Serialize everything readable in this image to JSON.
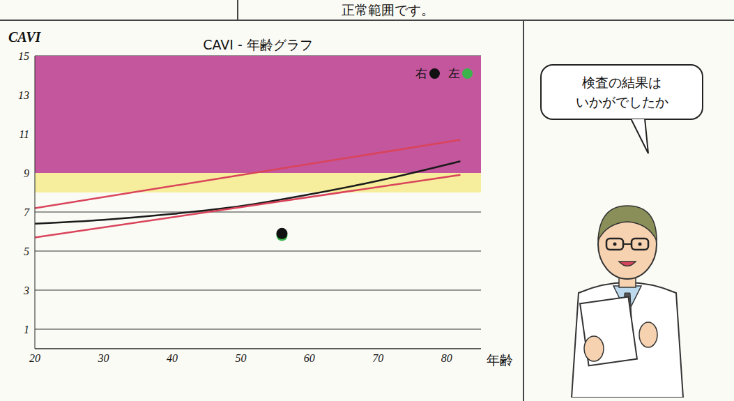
{
  "header": "正常範囲です。",
  "speech_bubble": [
    "検査の結果は",
    "いかがでしたか"
  ],
  "chart_data": {
    "type": "scatter",
    "title": "CAVI - 年齢グラフ",
    "y_label": "CAVI",
    "x_label": "年齢",
    "xlim": [
      20,
      85
    ],
    "xticks": [
      20,
      30,
      40,
      50,
      60,
      70,
      80
    ],
    "ylim": [
      0,
      15
    ],
    "yticks": [
      1,
      3,
      5,
      7,
      9,
      11,
      13,
      15
    ],
    "grid": true,
    "legend": "top-right",
    "bands": [
      {
        "from": 9,
        "to": 15,
        "color": "#c4569e"
      },
      {
        "from": 8,
        "to": 9,
        "color": "#f6ee9c"
      }
    ],
    "reference_lines": [
      {
        "type": "line",
        "color": "#1a1a1a",
        "x": [
          20,
          30,
          40,
          50,
          60,
          70,
          82
        ],
        "values": [
          6.4,
          6.6,
          6.9,
          7.3,
          7.9,
          8.6,
          9.6
        ]
      },
      {
        "type": "line",
        "color": "#d9445a",
        "x": [
          20,
          82
        ],
        "values": [
          7.2,
          10.7
        ]
      },
      {
        "type": "line",
        "color": "#d9445a",
        "x": [
          20,
          82
        ],
        "values": [
          5.7,
          8.9
        ]
      }
    ],
    "series": [
      {
        "name": "右",
        "color": "#111111",
        "marker": "circle",
        "x": [
          56
        ],
        "values": [
          5.9
        ]
      },
      {
        "name": "左",
        "color": "#3cb44b",
        "marker": "circle",
        "x": [
          56
        ],
        "values": [
          5.8
        ]
      }
    ]
  }
}
